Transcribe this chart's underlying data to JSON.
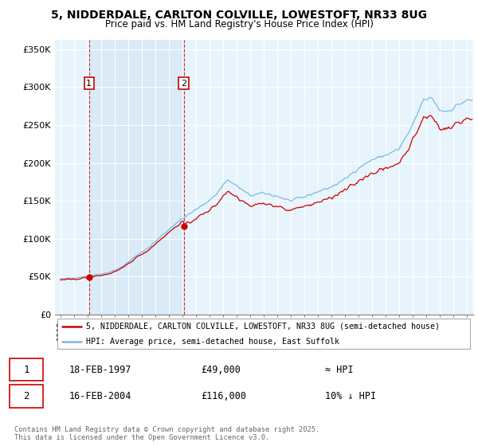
{
  "title_line1": "5, NIDDERDALE, CARLTON COLVILLE, LOWESTOFT, NR33 8UG",
  "title_line2": "Price paid vs. HM Land Registry's House Price Index (HPI)",
  "ylabel_ticks": [
    "£0",
    "£50K",
    "£100K",
    "£150K",
    "£200K",
    "£250K",
    "£300K",
    "£350K"
  ],
  "ytick_values": [
    0,
    50000,
    100000,
    150000,
    200000,
    250000,
    300000,
    350000
  ],
  "ylim": [
    0,
    362000
  ],
  "xlim_start": 1994.6,
  "xlim_end": 2025.5,
  "hpi_color": "#7db9e0",
  "price_color": "#cc0000",
  "sale1_x": 1997.12,
  "sale1_y": 49000,
  "sale2_x": 2004.12,
  "sale2_y": 116000,
  "sale1_label": "1",
  "sale2_label": "2",
  "legend_line1": "5, NIDDERDALE, CARLTON COLVILLE, LOWESTOFT, NR33 8UG (semi-detached house)",
  "legend_line2": "HPI: Average price, semi-detached house, East Suffolk",
  "table_row1": [
    "1",
    "18-FEB-1997",
    "£49,000",
    "≈ HPI"
  ],
  "table_row2": [
    "2",
    "16-FEB-2004",
    "£116,000",
    "10% ↓ HPI"
  ],
  "footer": "Contains HM Land Registry data © Crown copyright and database right 2025.\nThis data is licensed under the Open Government Licence v3.0.",
  "bg_color": "#e8f4fc",
  "shade_color": "#daeaf7"
}
